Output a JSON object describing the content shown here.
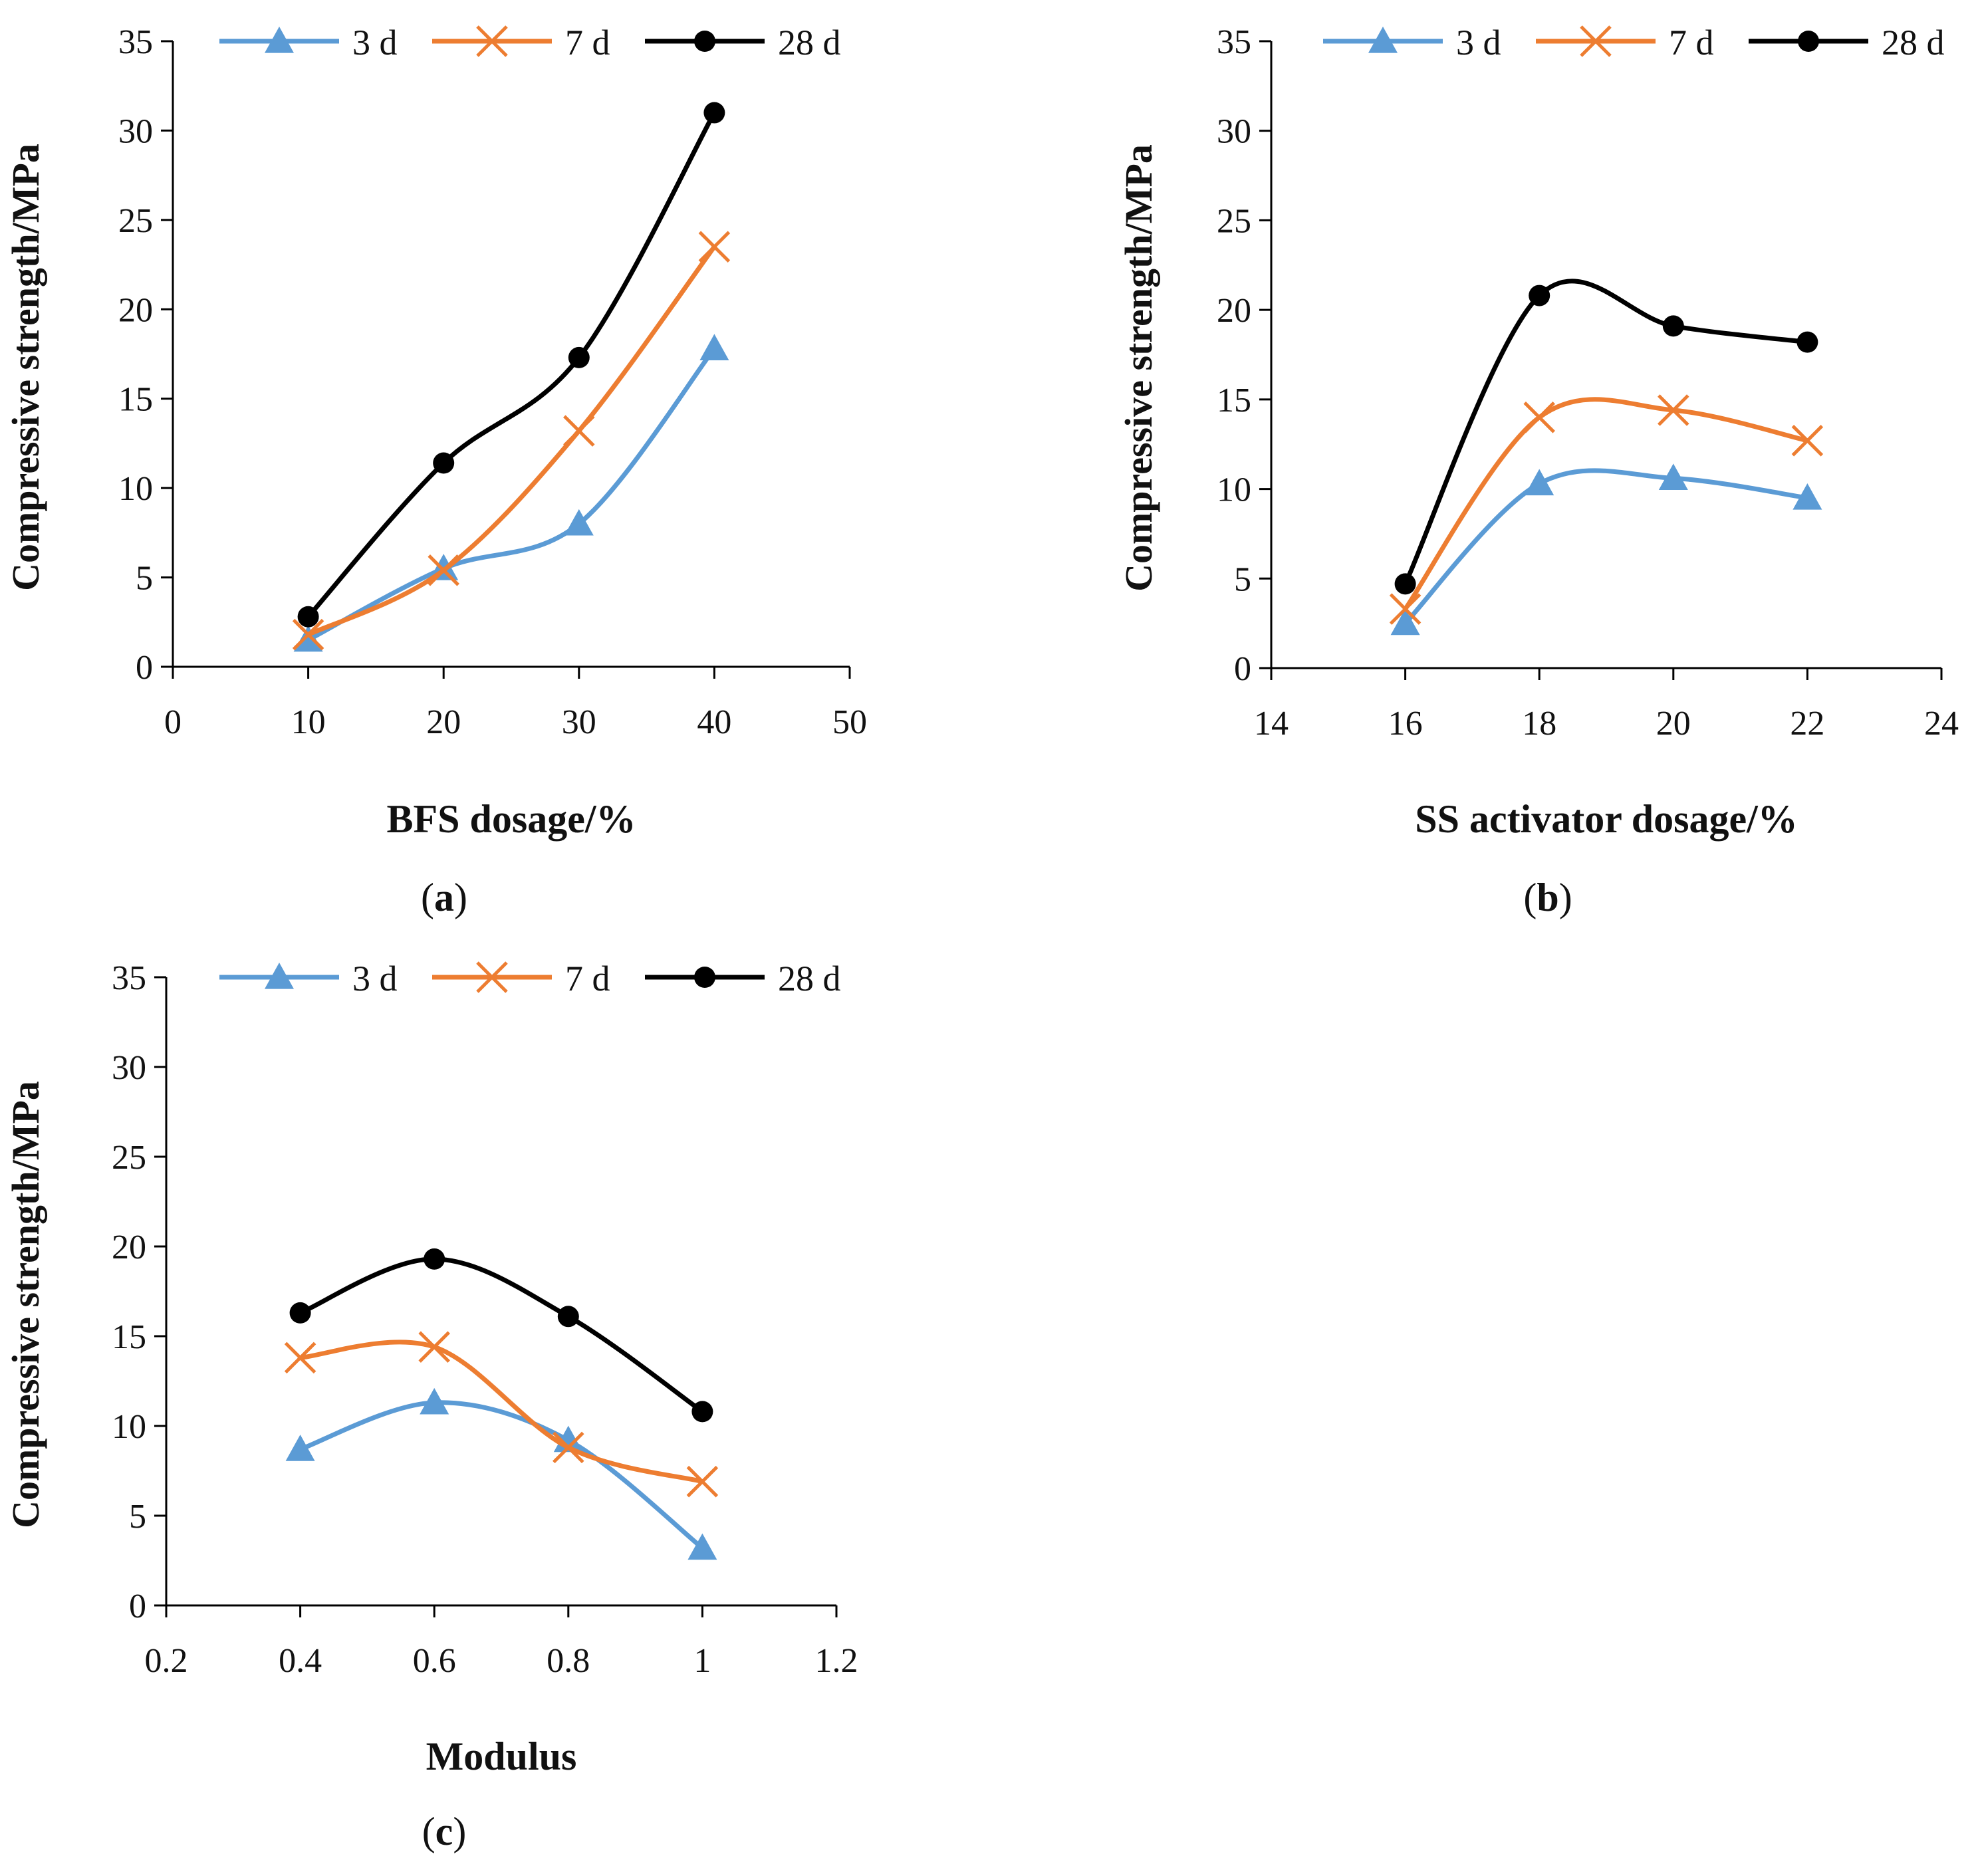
{
  "colors": {
    "3 d": "#5b9bd5",
    "7 d": "#ed7d31",
    "28 d": "#000000",
    "axis": "#000000"
  },
  "chart_data": [
    {
      "type": "line",
      "panel": "a",
      "xlabel": "BFS dosage/%",
      "ylabel": "Compressive strength/MPa",
      "xlim": [
        0,
        50
      ],
      "ylim": [
        0,
        35
      ],
      "xticks": [
        "0",
        "10",
        "20",
        "30",
        "40",
        "50"
      ],
      "yticks": [
        "0",
        "5",
        "10",
        "15",
        "20",
        "25",
        "30",
        "35"
      ],
      "x": [
        10,
        20,
        30,
        40
      ],
      "series": [
        {
          "name": "3 d",
          "marker": "triangle",
          "values": [
            1.5,
            5.5,
            8.0,
            17.8
          ]
        },
        {
          "name": "7 d",
          "marker": "x",
          "values": [
            1.8,
            5.4,
            13.2,
            23.5
          ]
        },
        {
          "name": "28 d",
          "marker": "circle",
          "values": [
            2.8,
            11.4,
            17.3,
            31.0
          ]
        }
      ]
    },
    {
      "type": "line",
      "panel": "b",
      "xlabel": "SS activator dosage/%",
      "ylabel": "Compressive strength/MPa",
      "xlim": [
        14,
        24
      ],
      "ylim": [
        0,
        35
      ],
      "xticks": [
        "14",
        "16",
        "18",
        "20",
        "22",
        "24"
      ],
      "yticks": [
        "0",
        "5",
        "10",
        "15",
        "20",
        "25",
        "30",
        "35"
      ],
      "x": [
        16,
        18,
        20,
        22
      ],
      "series": [
        {
          "name": "3 d",
          "marker": "triangle",
          "values": [
            2.5,
            10.3,
            10.6,
            9.5
          ]
        },
        {
          "name": "7 d",
          "marker": "x",
          "values": [
            3.3,
            14.0,
            14.4,
            12.7
          ]
        },
        {
          "name": "28 d",
          "marker": "circle",
          "values": [
            4.7,
            20.8,
            19.1,
            18.2
          ]
        }
      ]
    },
    {
      "type": "line",
      "panel": "c",
      "xlabel": "Modulus",
      "ylabel": "Compressive strength/MPa",
      "xlim": [
        0.2,
        1.2
      ],
      "ylim": [
        0,
        35
      ],
      "xticks": [
        "0.2",
        "0.4",
        "0.6",
        "0.8",
        "1",
        "1.2"
      ],
      "yticks": [
        "0",
        "5",
        "10",
        "15",
        "20",
        "25",
        "30",
        "35"
      ],
      "x": [
        0.4,
        0.6,
        0.8,
        1.0
      ],
      "series": [
        {
          "name": "3 d",
          "marker": "triangle",
          "values": [
            8.7,
            11.3,
            9.2,
            3.2
          ]
        },
        {
          "name": "7 d",
          "marker": "x",
          "values": [
            13.8,
            14.4,
            8.8,
            6.9
          ]
        },
        {
          "name": "28 d",
          "marker": "circle",
          "values": [
            16.3,
            19.3,
            16.1,
            10.8
          ]
        }
      ]
    }
  ]
}
